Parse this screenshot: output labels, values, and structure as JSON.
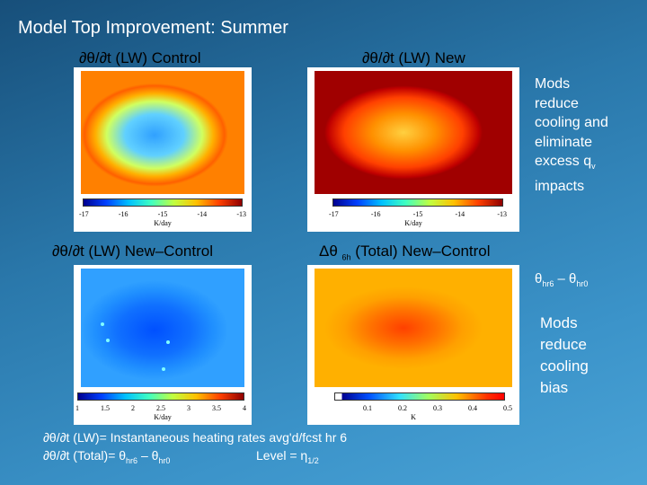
{
  "slide": {
    "title": "Model Top Improvement: Summer",
    "panels": [
      {
        "heading": "∂θ/∂t (LW) Control",
        "colorbar": {
          "ticks": [
            "-17",
            "-16",
            "-15",
            "-14",
            "-13"
          ],
          "unit": "K/day"
        }
      },
      {
        "heading": "∂θ/∂t  (LW)  New",
        "colorbar": {
          "ticks": [
            "-17",
            "-16",
            "-15",
            "-14",
            "-13"
          ],
          "unit": "K/day"
        }
      },
      {
        "heading": "∂θ/∂t  (LW) New–Control",
        "colorbar": {
          "ticks": [
            "1",
            "1.5",
            "2",
            "2.5",
            "3",
            "3.5",
            "4"
          ],
          "unit": "K/day"
        }
      },
      {
        "heading_prefix": "Δθ",
        "heading_sub": "6h",
        "heading_suffix": "(Total) New–Control",
        "colorbar": {
          "ticks": [
            "0.1",
            "0.2",
            "0.3",
            "0.4",
            "0.5"
          ],
          "unit": "K"
        }
      }
    ],
    "side_note_1": [
      "Mods",
      "reduce",
      "cooling and",
      "eliminate",
      "excess q",
      "impacts"
    ],
    "side_note_1_sub": "v",
    "theta_label": {
      "a": "θ",
      "a_sub": "hr6",
      "dash": " – ",
      "b": "θ",
      "b_sub": "hr0"
    },
    "side_note_2": [
      "Mods",
      "reduce",
      "cooling",
      "bias"
    ],
    "footnote_1": "∂θ/∂t (LW)= Instantaneous heating rates avg'd/fcst hr 6",
    "footnote_2": {
      "prefix": "∂θ/∂t (Total)= θ",
      "sub1": "hr6",
      "mid": " – θ",
      "sub2": "hr0",
      "level": "Level = η",
      "level_sub": "1/2"
    }
  },
  "colors": {
    "background": "#2a78ab",
    "colormap": "jet"
  }
}
